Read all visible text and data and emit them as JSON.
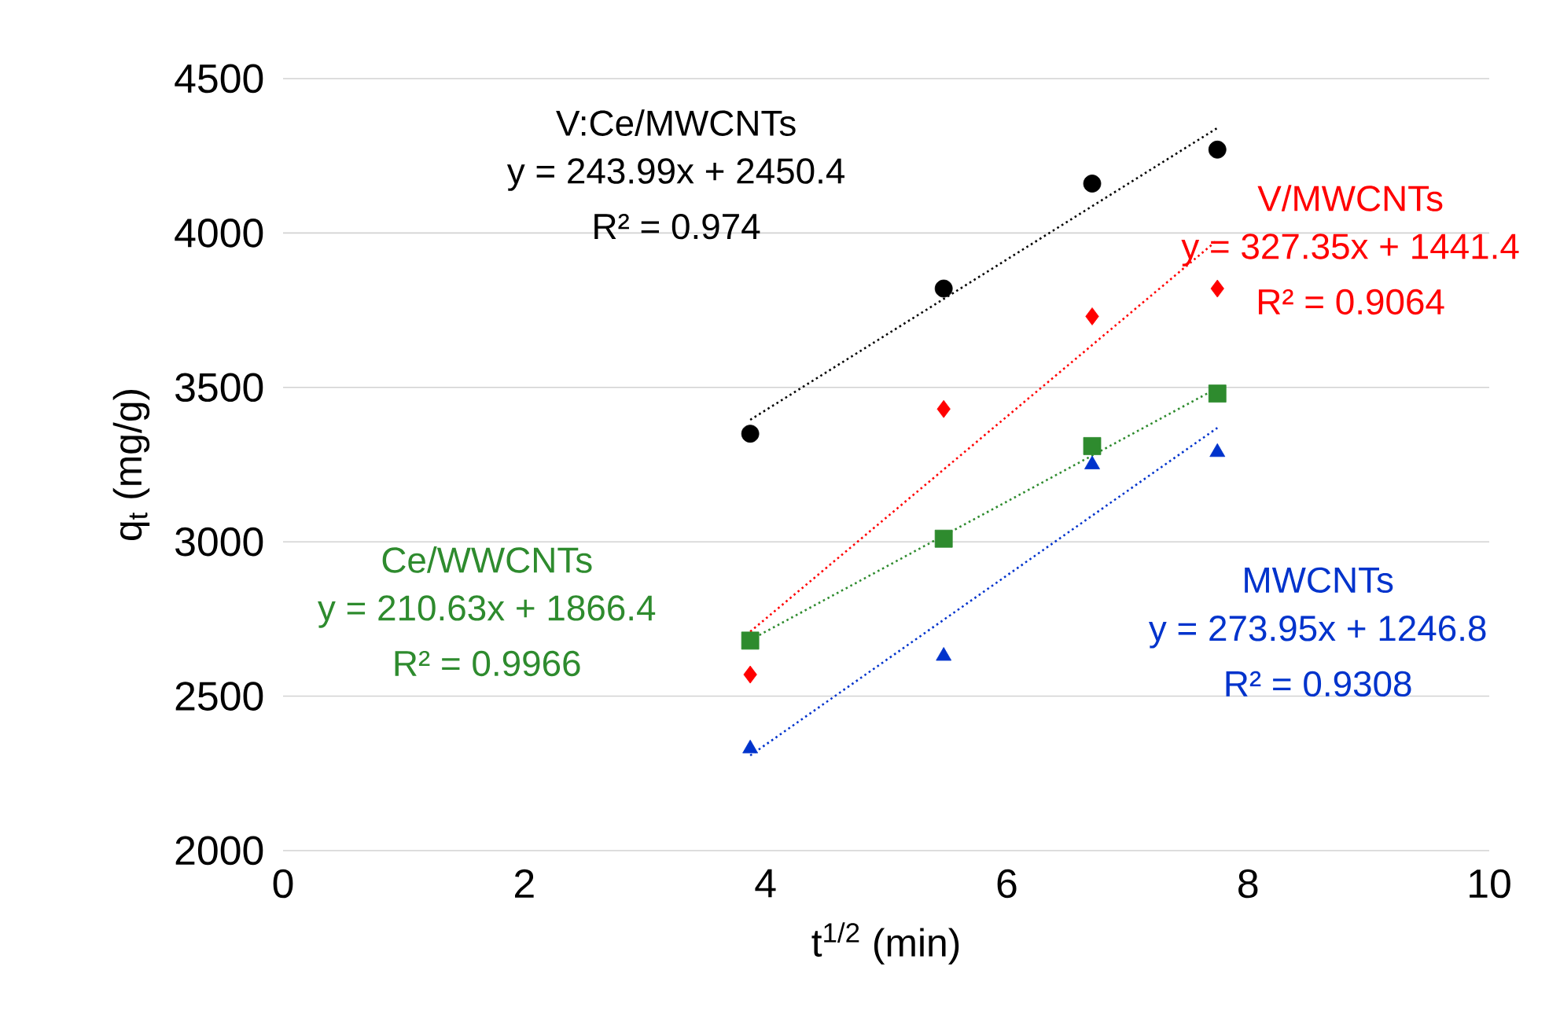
{
  "chart_data": {
    "type": "scatter",
    "xlabel": "t$^{1/2}$ (min)",
    "ylabel": "q$_{t}$ (mg/g)",
    "xlim": [
      0,
      10
    ],
    "xticks": [
      0,
      2,
      4,
      6,
      8,
      10
    ],
    "ylim": [
      2000,
      4500
    ],
    "yticks": [
      2000,
      2500,
      3000,
      3500,
      4000,
      4500
    ],
    "grid": "y",
    "series": [
      {
        "name": "V:Ce/MWCNTs",
        "marker": "circle",
        "color": "#000000",
        "x": [
          3.873,
          5.477,
          6.708,
          7.746
        ],
        "values": [
          3350,
          3820,
          4160,
          4270
        ]
      },
      {
        "name": "V/MWCNTs",
        "marker": "diamond",
        "color": "#ff0000",
        "x": [
          3.873,
          5.477,
          6.708,
          7.746
        ],
        "values": [
          2570,
          3430,
          3730,
          3820
        ]
      },
      {
        "name": "Ce/WWCNTs",
        "marker": "square",
        "color": "#2e8b2e",
        "x": [
          3.873,
          5.477,
          6.708,
          7.746
        ],
        "values": [
          2680,
          3010,
          3310,
          3480
        ]
      },
      {
        "name": "MWCNTs",
        "marker": "triangle",
        "color": "#0033cc",
        "x": [
          3.873,
          5.477,
          6.708,
          7.746
        ],
        "values": [
          2330,
          2630,
          3250,
          3290
        ]
      },
      {
        "type": "line",
        "line_style": "dotted",
        "marker": "none",
        "color": "#000000",
        "x": [
          3.873,
          7.746
        ],
        "values": [
          3395,
          4340
        ]
      },
      {
        "type": "line",
        "line_style": "dotted",
        "marker": "none",
        "color": "#ff0000",
        "x": [
          3.873,
          7.746
        ],
        "values": [
          2709,
          3977
        ]
      },
      {
        "type": "line",
        "line_style": "dotted",
        "marker": "none",
        "color": "#2e8b2e",
        "x": [
          3.873,
          7.746
        ],
        "values": [
          2682,
          3498
        ]
      },
      {
        "type": "line",
        "line_style": "dotted",
        "marker": "none",
        "color": "#0033cc",
        "x": [
          3.873,
          7.746
        ],
        "values": [
          2308,
          3369
        ]
      }
    ],
    "annotations": [
      "y = 243.99x + 2450.4",
      "R² = 0.974",
      "y = 327.35x + 1441.4",
      "R² = 0.9064",
      "y = 210.63x + 1866.4",
      "R² = 0.9966",
      "y = 273.95x + 1246.8",
      "R² = 0.9308"
    ]
  }
}
